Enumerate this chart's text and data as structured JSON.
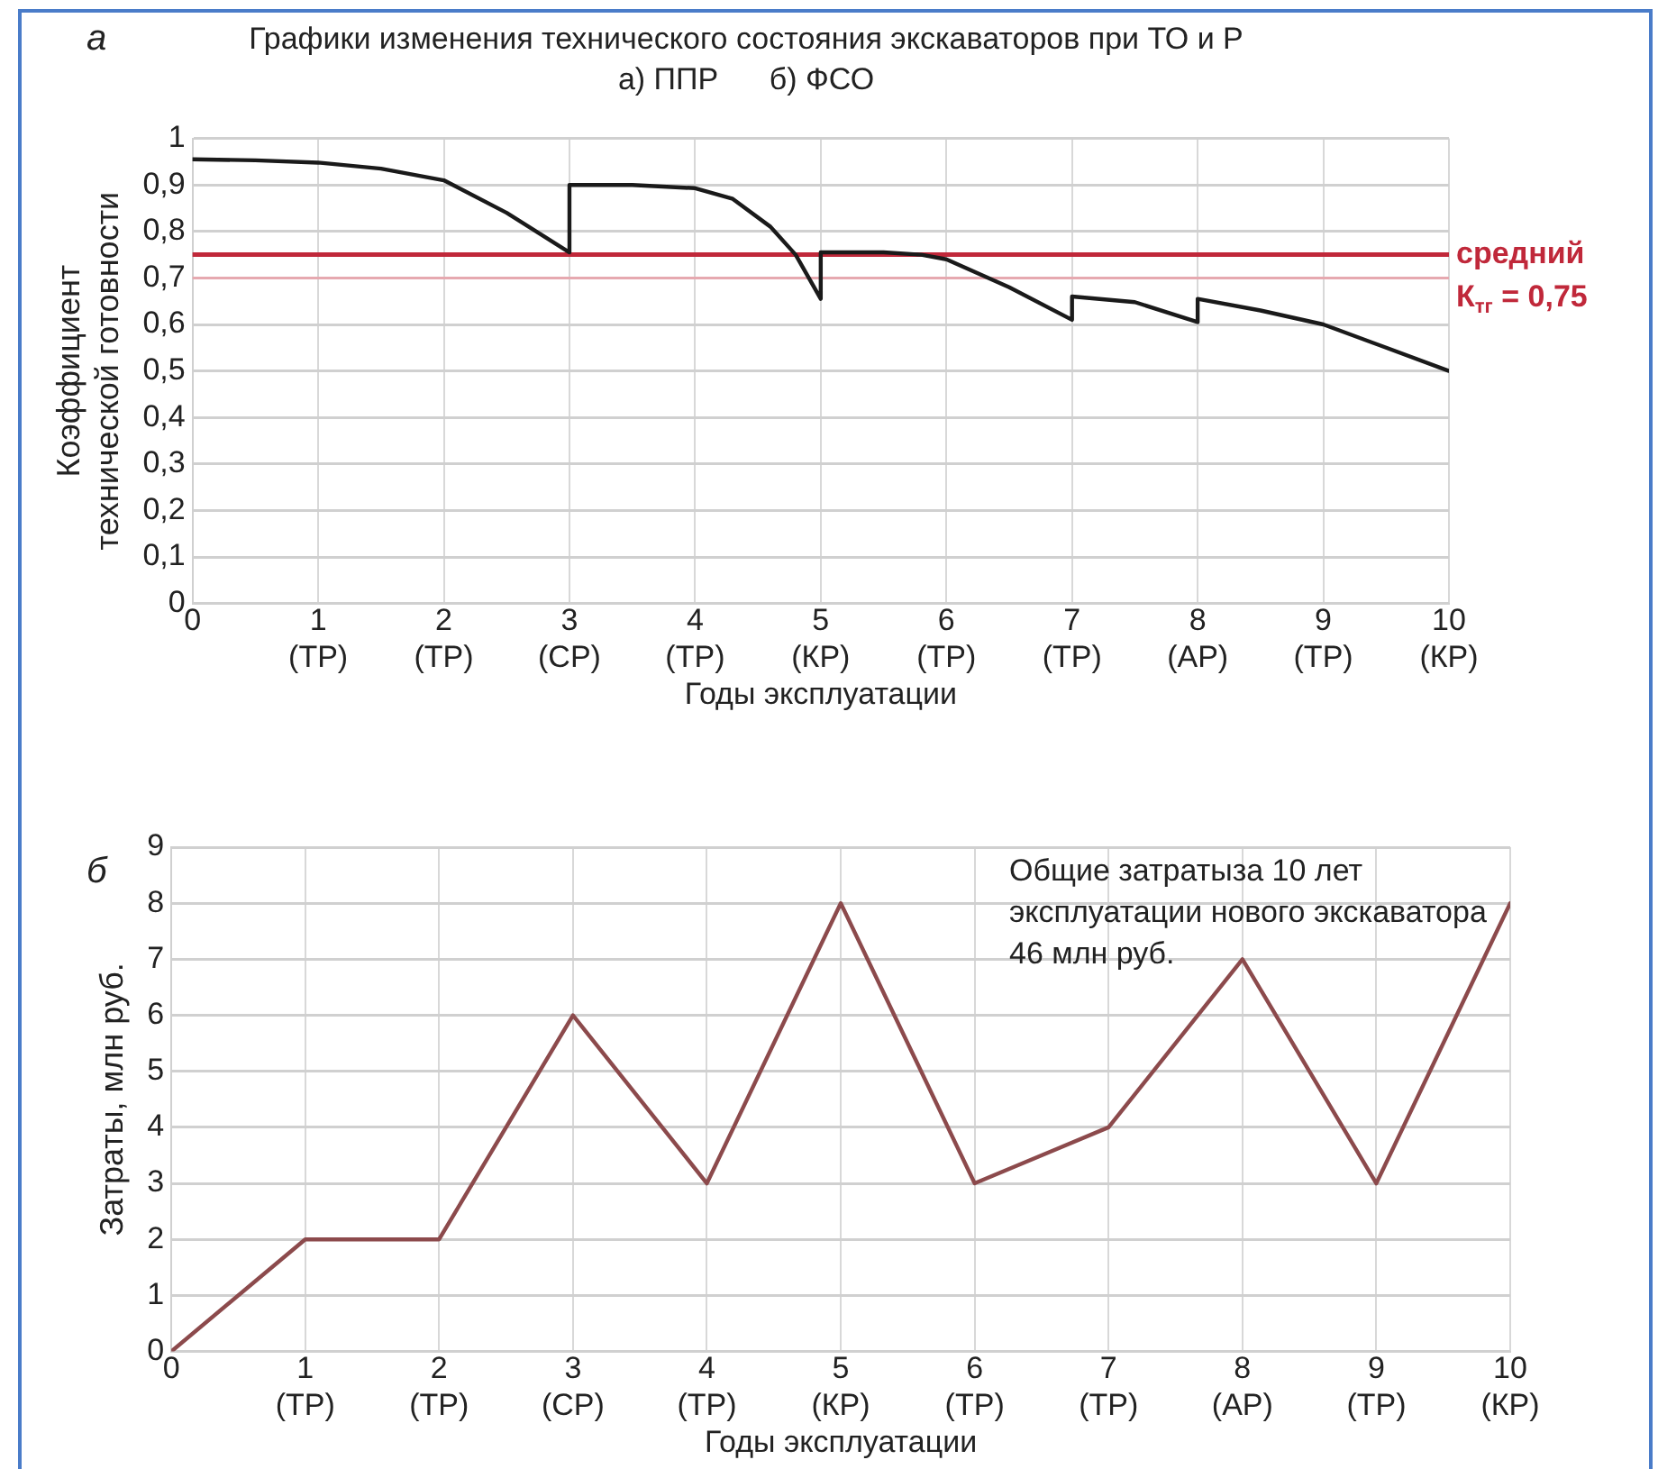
{
  "chart_data": [
    {
      "type": "line",
      "title": "Графики изменения технического состояния экскаваторов при ТО и Р",
      "subtitle": "а) ППР      б) ФСО",
      "xlabel": "Годы эксплуатации",
      "ylabel": "Коэффициент\nтехнической готовности",
      "annotations": [
        "а"
      ],
      "x": [
        0,
        0.5,
        1,
        1.5,
        2,
        2.5,
        3,
        3,
        3.5,
        4,
        4.3,
        4.6,
        4.8,
        5,
        5,
        5.5,
        5.8,
        6,
        6.5,
        7,
        7,
        7.5,
        8,
        8,
        8.5,
        9,
        9.5,
        10
      ],
      "series": [
        {
          "color": "#1a1a1a",
          "values": [
            0.955,
            0.953,
            0.948,
            0.935,
            0.91,
            0.84,
            0.755,
            0.9,
            0.9,
            0.893,
            0.87,
            0.81,
            0.75,
            0.655,
            0.755,
            0.755,
            0.75,
            0.74,
            0.68,
            0.61,
            0.66,
            0.648,
            0.605,
            0.655,
            0.63,
            0.6,
            0.55,
            0.5
          ]
        }
      ],
      "xlim": [
        0,
        10
      ],
      "xticks": [
        0,
        {
          "value": 1,
          "label": "1\n(ТР)"
        },
        {
          "value": 2,
          "label": "2\n(ТР)"
        },
        {
          "value": 3,
          "label": "3\n(СР)"
        },
        {
          "value": 4,
          "label": "4\n(ТР)"
        },
        {
          "value": 5,
          "label": "5\n(КР)"
        },
        {
          "value": 6,
          "label": "6\n(ТР)"
        },
        {
          "value": 7,
          "label": "7\n(ТР)"
        },
        {
          "value": 8,
          "label": "8\n(АР)"
        },
        {
          "value": 9,
          "label": "9\n(ТР)"
        },
        {
          "value": 10,
          "label": "10\n(КР)"
        }
      ],
      "ylim": [
        0,
        1
      ],
      "yticks": [
        0,
        {
          "value": 0.1,
          "label": "0,1"
        },
        {
          "value": 0.2,
          "label": "0,2"
        },
        {
          "value": 0.3,
          "label": "0,3"
        },
        {
          "value": 0.4,
          "label": "0,4"
        },
        {
          "value": 0.5,
          "label": "0,5"
        },
        {
          "value": 0.6,
          "label": "0,6"
        },
        {
          "value": 0.7,
          "label": "0,7"
        },
        {
          "value": 0.8,
          "label": "0,8"
        },
        {
          "value": 0.9,
          "label": "0,9"
        },
        1
      ],
      "ref_lines": [
        {
          "axis": "y",
          "value": 0.75,
          "label": "средний\nК$_{тг}$ = 0,75",
          "color": "#c0283a"
        },
        {
          "axis": "y",
          "value": 0.7,
          "color": "#e6a9b0"
        }
      ],
      "grid": true,
      "marker": "none",
      "line_style": "solid",
      "legend": false
    },
    {
      "type": "line",
      "xlabel": "Годы эксплуатации",
      "ylabel": "Затраты, млн руб.",
      "annotations": [
        "б",
        "Общие затратыза 10 лет\nэксплуатации нового экскаватора\n46 млн руб."
      ],
      "x": [
        0,
        1,
        2,
        3,
        4,
        5,
        6,
        7,
        8,
        9,
        10
      ],
      "series": [
        {
          "color": "#8c4a4c",
          "values": [
            0,
            2,
            2,
            6,
            3,
            8,
            3,
            4,
            7,
            3,
            8
          ]
        }
      ],
      "xlim": [
        0,
        10
      ],
      "xticks": [
        0,
        {
          "value": 1,
          "label": "1\n(ТР)"
        },
        {
          "value": 2,
          "label": "2\n(ТР)"
        },
        {
          "value": 3,
          "label": "3\n(СР)"
        },
        {
          "value": 4,
          "label": "4\n(ТР)"
        },
        {
          "value": 5,
          "label": "5\n(КР)"
        },
        {
          "value": 6,
          "label": "6\n(ТР)"
        },
        {
          "value": 7,
          "label": "7\n(ТР)"
        },
        {
          "value": 8,
          "label": "8\n(АР)"
        },
        {
          "value": 9,
          "label": "9\n(ТР)"
        },
        {
          "value": 10,
          "label": "10\n(КР)"
        }
      ],
      "ylim": [
        0,
        9
      ],
      "yticks": [
        0,
        1,
        2,
        3,
        4,
        5,
        6,
        7,
        8,
        9
      ],
      "grid": true,
      "marker": "none",
      "line_style": "solid",
      "legend": false
    }
  ]
}
